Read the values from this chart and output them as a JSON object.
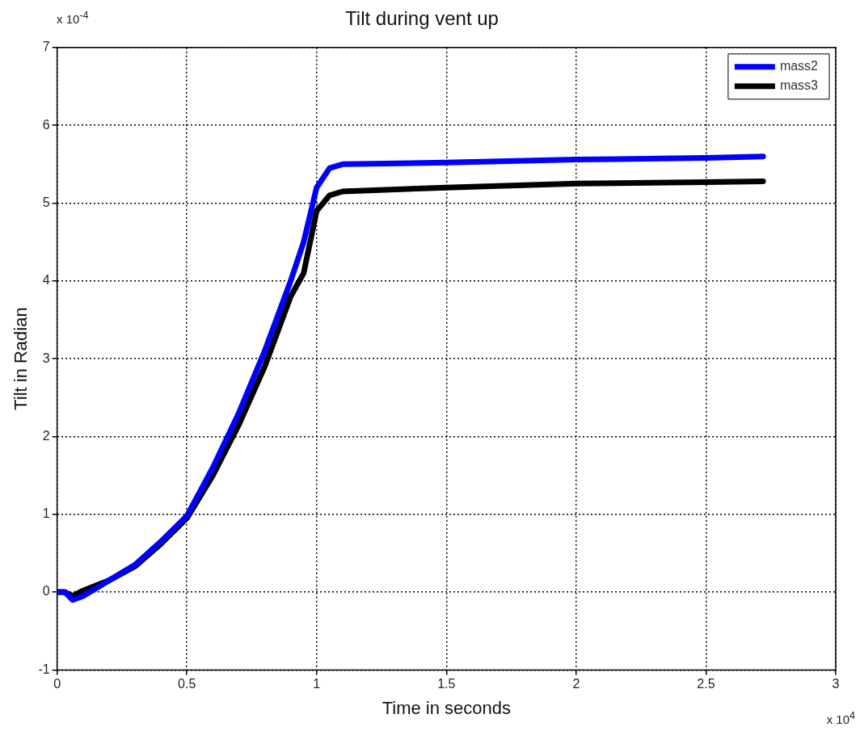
{
  "chart_data": {
    "type": "line",
    "title": "Tilt during vent up",
    "xlabel": "Time in seconds",
    "ylabel": "Tilt in Radian",
    "annotations": [
      "x 10$^{-4}$",
      "x 10$^{4}$"
    ],
    "xlim": [
      0,
      3
    ],
    "xticks": [
      0,
      0.5,
      1,
      1.5,
      2,
      2.5,
      3
    ],
    "ylim": [
      -1,
      7
    ],
    "yticks": [
      -1,
      0,
      1,
      2,
      3,
      4,
      5,
      6,
      7
    ],
    "grid": true,
    "legend": "top right",
    "marker": "none",
    "line_style": "solid",
    "series": [
      {
        "name": "mass2",
        "color": "#0000ff",
        "x": [
          0,
          0.03,
          0.06,
          0.1,
          0.2,
          0.3,
          0.4,
          0.5,
          0.6,
          0.7,
          0.8,
          0.9,
          0.95,
          1.0,
          1.05,
          1.1,
          1.5,
          2,
          2.5,
          2.72
        ],
        "values": [
          0,
          0,
          -0.1,
          -0.05,
          0.15,
          0.35,
          0.65,
          0.98,
          1.6,
          2.3,
          3.1,
          4.0,
          4.5,
          5.2,
          5.45,
          5.5,
          5.52,
          5.56,
          5.58,
          5.6
        ]
      },
      {
        "name": "mass3",
        "color": "#000000",
        "x": [
          0,
          0.03,
          0.06,
          0.1,
          0.2,
          0.3,
          0.4,
          0.5,
          0.6,
          0.7,
          0.8,
          0.9,
          0.95,
          1.0,
          1.05,
          1.1,
          1.5,
          2,
          2.5,
          2.72
        ],
        "values": [
          0,
          0,
          -0.05,
          0.02,
          0.15,
          0.33,
          0.62,
          0.95,
          1.5,
          2.15,
          2.9,
          3.8,
          4.1,
          4.9,
          5.1,
          5.15,
          5.2,
          5.25,
          5.27,
          5.28
        ]
      }
    ]
  }
}
